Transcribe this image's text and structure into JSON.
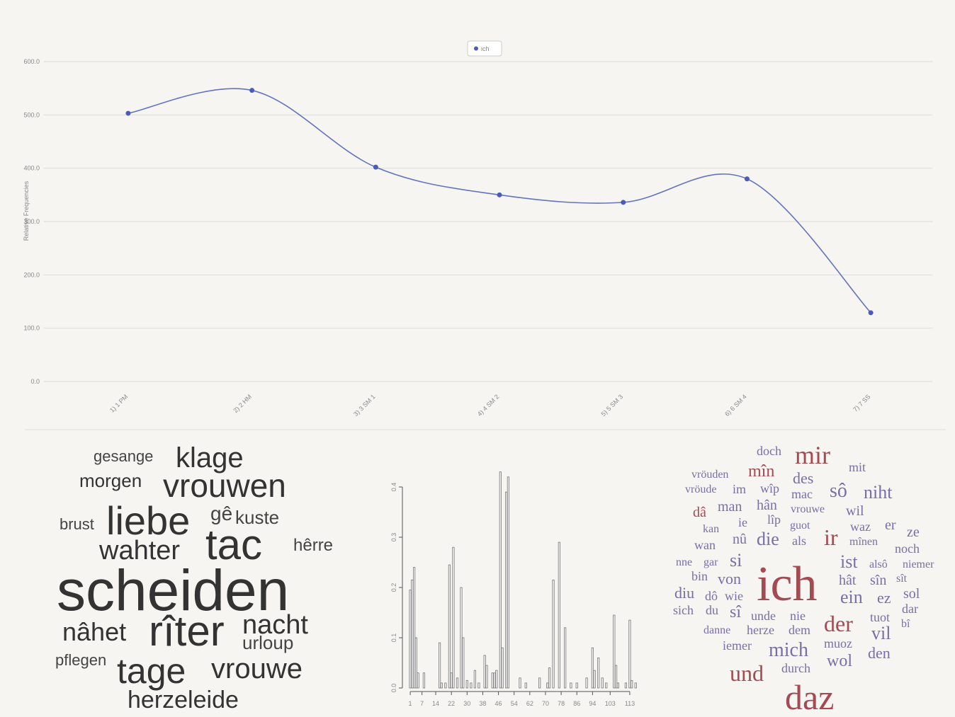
{
  "chart_data": [
    {
      "type": "line",
      "categories": [
        "1) 1 PM",
        "2) 2 HM",
        "3) 3 SM 1",
        "4) 4 SM 2",
        "5) 5 SM 3",
        "6) 6 SM 4",
        "7) 7 SS"
      ],
      "series": [
        {
          "name": "ich",
          "color": "#4a5cb8",
          "values": [
            503,
            546,
            402,
            350,
            336,
            380,
            129
          ]
        }
      ],
      "ylabel": "Relative Frequencies",
      "ylim": [
        0,
        600
      ],
      "yticks": [
        {
          "value": 0,
          "label": "0.0"
        },
        {
          "value": 100,
          "label": "100.0"
        },
        {
          "value": 200,
          "label": "200.0"
        },
        {
          "value": 300,
          "label": "300.0"
        },
        {
          "value": 400,
          "label": "400.0"
        },
        {
          "value": 500,
          "label": "500.0"
        },
        {
          "value": 600,
          "label": "600.0"
        }
      ],
      "grid": true,
      "legend": "top"
    },
    {
      "type": "wordcloud",
      "words": [
        "gesange",
        "klage",
        "morgen",
        "vrouwen",
        "brust",
        "liebe",
        "gê",
        "kuste",
        "wahter",
        "tac",
        "hêrre",
        "scheiden",
        "nâhet",
        "rîter",
        "nacht",
        "urloup",
        "pflegen",
        "tage",
        "vrouwe",
        "herzeleide"
      ]
    },
    {
      "type": "bar",
      "x": [
        1,
        2,
        3,
        4,
        5,
        8,
        16,
        17,
        19,
        21,
        22,
        23,
        25,
        27,
        28,
        30,
        32,
        34,
        36,
        39,
        40,
        43,
        44,
        45,
        47,
        48,
        50,
        51,
        57,
        60,
        67,
        71,
        72,
        74,
        77,
        80,
        83,
        86,
        91,
        94,
        95,
        97,
        99,
        101,
        105,
        106,
        107,
        111,
        113,
        114,
        116
      ],
      "values": [
        0.195,
        0.215,
        0.24,
        0.1,
        0.03,
        0.03,
        0.09,
        0.01,
        0.01,
        0.245,
        0.03,
        0.28,
        0.02,
        0.2,
        0.1,
        0.015,
        0.01,
        0.035,
        0.01,
        0.065,
        0.045,
        0.03,
        0.03,
        0.035,
        0.43,
        0.08,
        0.39,
        0.42,
        0.02,
        0.01,
        0.02,
        0.01,
        0.04,
        0.215,
        0.29,
        0.12,
        0.01,
        0.01,
        0.02,
        0.08,
        0.035,
        0.06,
        0.02,
        0.01,
        0.145,
        0.045,
        0.01,
        0.01,
        0.135,
        0.015,
        0.01
      ],
      "color": "#999999",
      "xlim": [
        -3,
        117
      ],
      "xticks": [
        1,
        7,
        14,
        22,
        30,
        38,
        46,
        54,
        62,
        70,
        78,
        86,
        94,
        103,
        113
      ],
      "ylim": [
        0,
        0.4
      ],
      "yticks": [
        {
          "value": 0,
          "label": "0.0"
        },
        {
          "value": 0.1,
          "label": "0.1"
        },
        {
          "value": 0.2,
          "label": "0.2"
        },
        {
          "value": 0.3,
          "label": "0.3"
        },
        {
          "value": 0.4,
          "label": "0.4"
        }
      ]
    },
    {
      "type": "wordcloud",
      "words": [
        "doch",
        "mir",
        "mit",
        "vröuden",
        "mîn",
        "des",
        "vröude",
        "im",
        "wîp",
        "mac",
        "sô",
        "niht",
        "dâ",
        "man",
        "hân",
        "vrouwe",
        "wil",
        "kan",
        "ie",
        "lîp",
        "guot",
        "waz",
        "er",
        "ze",
        "wan",
        "nû",
        "die",
        "als",
        "ir",
        "mînen",
        "noch",
        "nne",
        "gar",
        "si",
        "ist",
        "alsô",
        "niemer",
        "bin",
        "von",
        "ich",
        "hât",
        "sîn",
        "sît",
        "diu",
        "dô",
        "wie",
        "ein",
        "ez",
        "sol",
        "sich",
        "du",
        "sî",
        "unde",
        "nie",
        "der",
        "tuot",
        "dar",
        "danne",
        "herze",
        "dem",
        "bî",
        "vil",
        "iemer",
        "mich",
        "muoz",
        "den",
        "wol",
        "und",
        "durch",
        "daz"
      ]
    }
  ]
}
